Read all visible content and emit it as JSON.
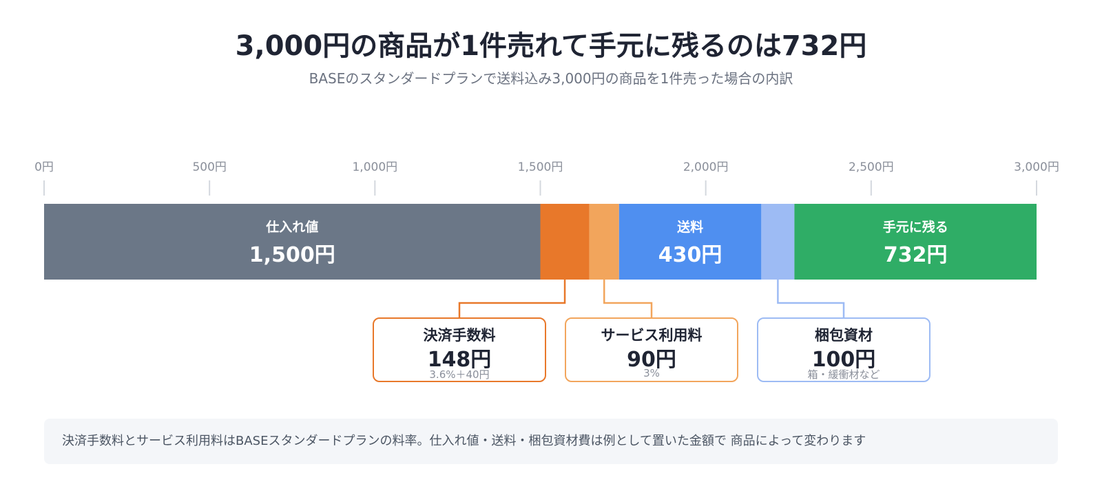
{
  "chart_data": {
    "type": "bar",
    "orientation": "horizontal-stacked",
    "title": "3,000円の商品が1件売れて手元に残るのは732円",
    "subtitle": "BASEのスタンダードプランで送料込み3,000円の商品を1件売った場合の内訳",
    "xlim": [
      0,
      3000
    ],
    "ticks": [
      0,
      500,
      1000,
      1500,
      2000,
      2500,
      3000
    ],
    "tick_labels": [
      "0円",
      "500円",
      "1,000円",
      "1,500円",
      "2,000円",
      "2,500円",
      "3,000円"
    ],
    "segments": [
      {
        "key": "cost",
        "name": "仕入れ値",
        "value": 1500,
        "value_label": "1,500円",
        "color": "#6b7787",
        "inline": true
      },
      {
        "key": "payment",
        "name": "決済手数料",
        "value": 148,
        "value_label": "148円",
        "note": "3.6%＋40円",
        "color": "#e8782a",
        "inline": false
      },
      {
        "key": "service",
        "name": "サービス利用料",
        "value": 90,
        "value_label": "90円",
        "note": "3%",
        "color": "#f2a55c",
        "inline": false
      },
      {
        "key": "shipping",
        "name": "送料",
        "value": 430,
        "value_label": "430円",
        "color": "#4f8ff0",
        "inline": true
      },
      {
        "key": "packing",
        "name": "梱包資材",
        "value": 100,
        "value_label": "100円",
        "note": "箱・緩衝材など",
        "color": "#9dbbf4",
        "inline": false
      },
      {
        "key": "remaining",
        "name": "手元に残る",
        "value": 732,
        "value_label": "732円",
        "color": "#2fad66",
        "inline": true
      }
    ]
  },
  "footnote": "決済手数料とサービス利用料はBASEスタンダードプランの料率。仕入れ値・送料・梱包資材費は例として置いた金額で 商品によって変わります",
  "colors": {
    "axis_tick": "#d4d8de",
    "box_payment_border": "#e8782a",
    "box_service_border": "#f2a55c",
    "box_packing_border": "#9dbbf4"
  }
}
